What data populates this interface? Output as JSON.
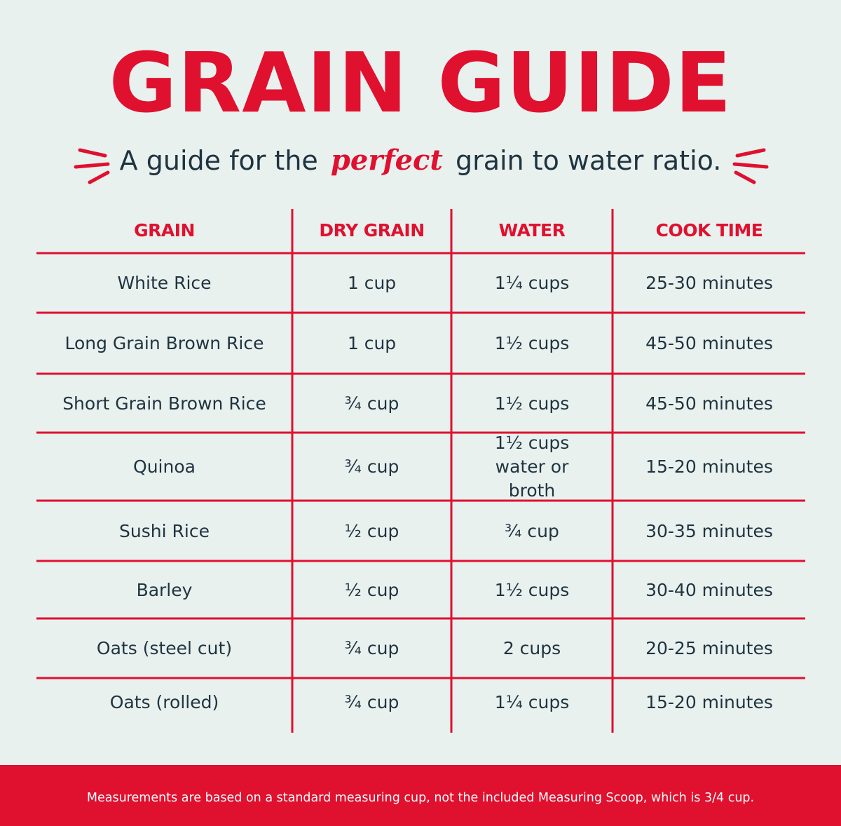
{
  "title": "GRAIN GUIDE",
  "subtitle": {
    "before": "A guide for the",
    "emphasis": "perfect",
    "after": "grain to water ratio."
  },
  "colors": {
    "accent": "#e0102f",
    "background": "#e9f1ef",
    "text": "#1f3440"
  },
  "table": {
    "headers": [
      "GRAIN",
      "DRY GRAIN",
      "WATER",
      "COOK TIME"
    ],
    "rows": [
      [
        "White Rice",
        "1 cup",
        "1¼ cups",
        "25-30 minutes"
      ],
      [
        "Long Grain Brown Rice",
        "1 cup",
        "1½ cups",
        "45-50 minutes"
      ],
      [
        "Short Grain Brown Rice",
        "¾ cup",
        "1½ cups",
        "45-50 minutes"
      ],
      [
        "Quinoa",
        "¾ cup",
        "1½ cups water or broth",
        "15-20 minutes"
      ],
      [
        "Sushi Rice",
        "½ cup",
        "¾ cup",
        "30-35 minutes"
      ],
      [
        "Barley",
        "½ cup",
        "1½ cups",
        "30-40 minutes"
      ],
      [
        "Oats (steel cut)",
        "¾ cup",
        "2 cups",
        "20-25 minutes"
      ],
      [
        "Oats (rolled)",
        "¾ cup",
        "1¼ cups",
        "15-20 minutes"
      ]
    ]
  },
  "footer": "Measurements are based on a standard measuring cup, not the included Measuring Scoop, which is 3/4 cup."
}
